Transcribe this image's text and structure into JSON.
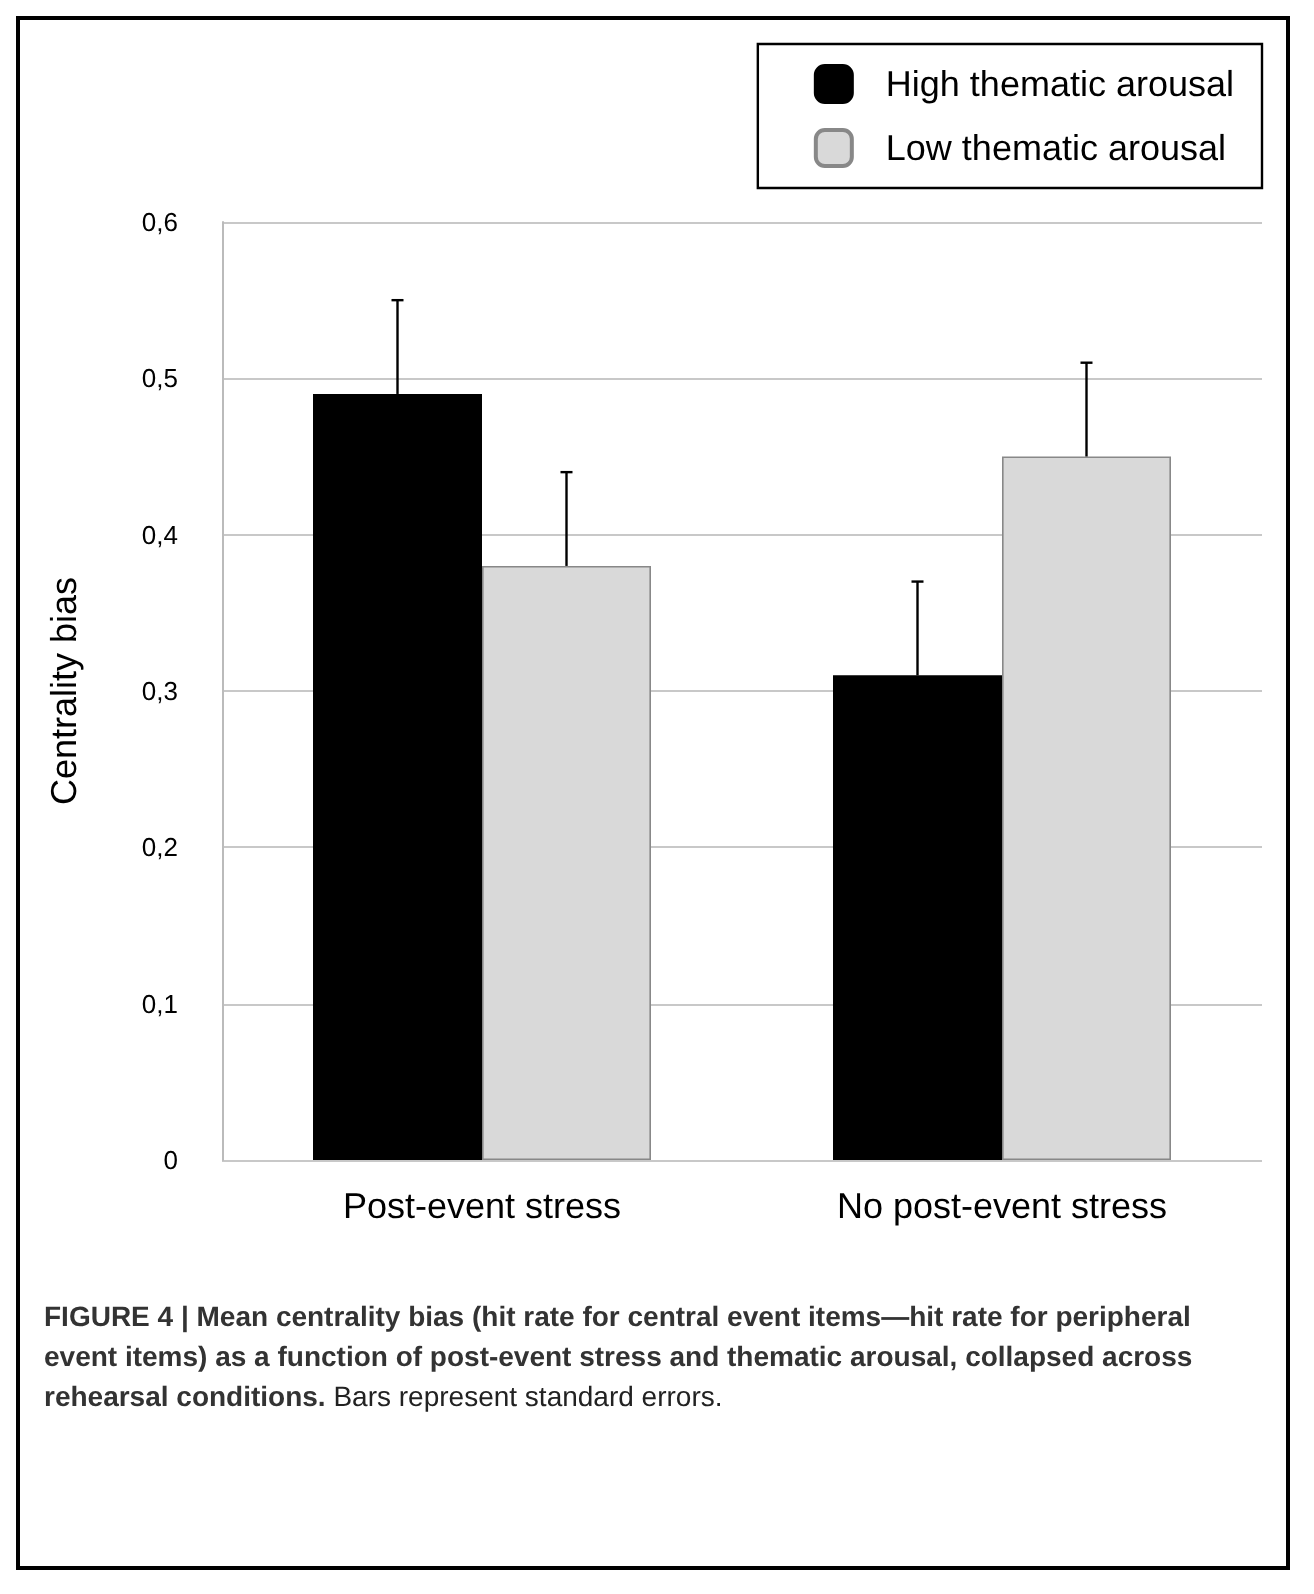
{
  "chart_data": {
    "type": "bar",
    "ylabel": "Centrality bias",
    "categories": [
      "Post-event stress",
      "No post-event stress"
    ],
    "series": [
      {
        "name": "High thematic arousal",
        "color": "#000000",
        "values": [
          0.49,
          0.31
        ],
        "errors": [
          [
            0.49,
            0.55
          ],
          [
            0.31,
            0.37
          ]
        ]
      },
      {
        "name": "Low thematic arousal",
        "color": "#d9d9d9",
        "values": [
          0.38,
          0.45
        ],
        "errors": [
          [
            0.38,
            0.44
          ],
          [
            0.45,
            0.51
          ]
        ]
      }
    ],
    "ylim": [
      0,
      0.6
    ],
    "yticks": [
      0,
      {
        "value": 0.1,
        "label": "0,1"
      },
      {
        "value": 0.2,
        "label": "0,2"
      },
      {
        "value": 0.3,
        "label": "0,3"
      },
      {
        "value": 0.4,
        "label": "0,4"
      },
      {
        "value": 0.5,
        "label": "0,5"
      },
      {
        "value": 0.6,
        "label": "0,6"
      }
    ],
    "grid": "y",
    "legend": "top right",
    "annotations": [
      "FIGURE 4 | Mean centrality bias (hit rate for central event items—hit rate for peripheral event items) as a function of post-event stress and thematic arousal, collapsed across rehearsal conditions.",
      "Bars represent standard errors."
    ]
  }
}
